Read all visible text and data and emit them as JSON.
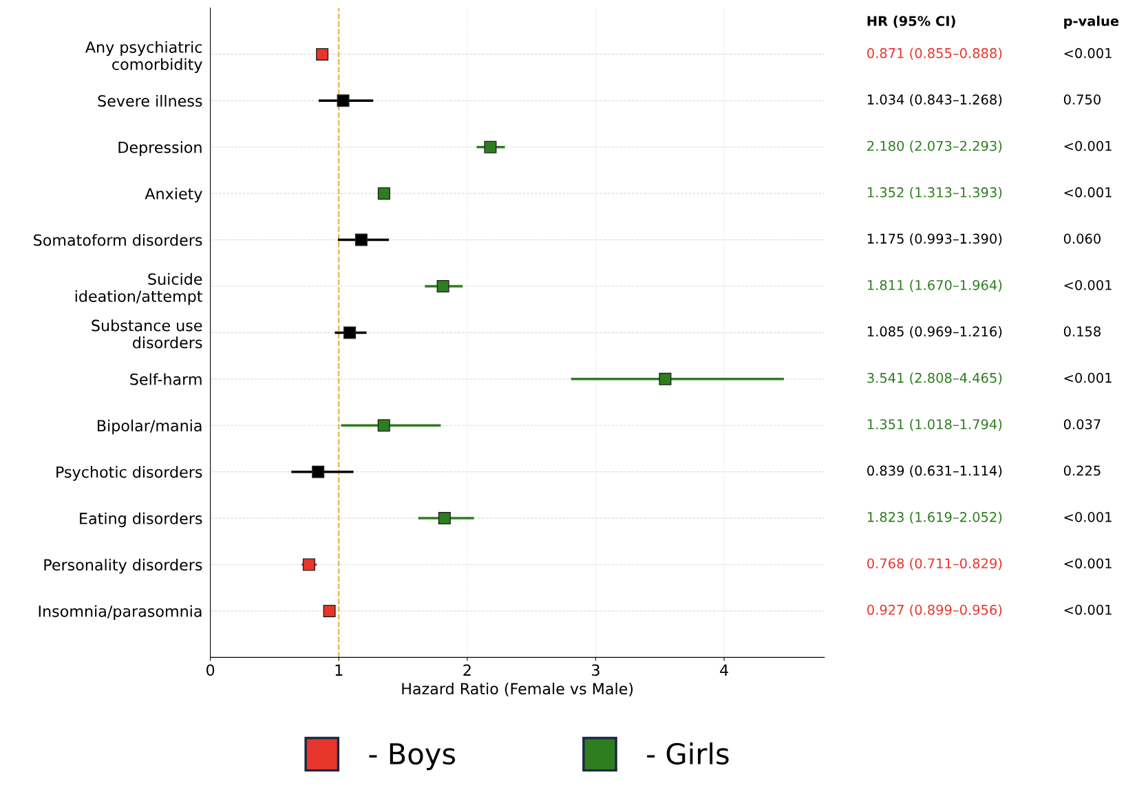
{
  "chart_data": {
    "type": "scatter",
    "orientation": "horizontal",
    "xlabel": "Hazard Ratio (Female vs Male)",
    "categories": [
      "Any psychiatric\ncomorbidity",
      "Severe illness",
      "Depression",
      "Anxiety",
      "Somatoform disorders",
      "Suicide\nideation/attempt",
      "Substance use\ndisorders",
      "Self-harm",
      "Bipolar/mania",
      "Psychotic disorders",
      "Eating disorders",
      "Personality disorders",
      "Insomnia/parasomnia"
    ],
    "series": [
      {
        "name": "- Boys",
        "color": "#e8352b",
        "values": [
          0.871,
          null,
          null,
          null,
          null,
          null,
          null,
          null,
          null,
          null,
          null,
          0.768,
          0.927
        ],
        "errors": [
          [
            0.855,
            0.888
          ],
          null,
          null,
          null,
          null,
          null,
          null,
          null,
          null,
          null,
          null,
          [
            0.711,
            0.829
          ],
          [
            0.899,
            0.956
          ]
        ]
      },
      {
        "name": "- Girls",
        "color": "#2e7d1f",
        "values": [
          null,
          null,
          2.18,
          1.352,
          null,
          1.811,
          null,
          3.541,
          1.351,
          null,
          1.823,
          null,
          null
        ],
        "errors": [
          null,
          null,
          [
            2.073,
            2.293
          ],
          [
            1.313,
            1.393
          ],
          null,
          [
            1.67,
            1.964
          ],
          null,
          [
            2.808,
            4.465
          ],
          [
            1.018,
            1.794
          ],
          null,
          [
            1.619,
            2.052
          ],
          null,
          null
        ]
      },
      {
        "color": "#000000",
        "values": [
          null,
          1.034,
          null,
          null,
          1.175,
          null,
          1.085,
          null,
          null,
          0.839,
          null,
          null,
          null
        ],
        "errors": [
          null,
          [
            0.843,
            1.268
          ],
          null,
          null,
          [
            0.993,
            1.39
          ],
          null,
          [
            0.969,
            1.216
          ],
          null,
          null,
          [
            0.631,
            1.114
          ],
          null,
          null,
          null
        ]
      }
    ],
    "xlim": [
      0,
      4.78
    ],
    "xticks": [
      0,
      1,
      2,
      3,
      4
    ],
    "ref_lines": [
      {
        "axis": "x",
        "value": 1,
        "color": "#e0b040",
        "line_style": "dashed"
      }
    ],
    "annotations": [
      "HR (95% CI)",
      "p-value",
      "0.871 (0.855–0.888)",
      "1.034 (0.843–1.268)",
      "2.180 (2.073–2.293)",
      "1.352 (1.313–1.393)",
      "1.175 (0.993–1.390)",
      "1.811 (1.670–1.964)",
      "1.085 (0.969–1.216)",
      "3.541 (2.808–4.465)",
      "1.351 (1.018–1.794)",
      "0.839 (0.631–1.114)",
      "1.823 (1.619–2.052)",
      "0.768 (0.711–0.829)",
      "0.927 (0.899–0.956)",
      "<0.001",
      "0.750",
      "<0.001",
      "<0.001",
      "0.060",
      "<0.001",
      "0.158",
      "<0.001",
      "0.037",
      "0.225",
      "<0.001",
      "<0.001",
      "<0.001"
    ],
    "grid": true,
    "legend": "bottom",
    "marker": "square"
  }
}
